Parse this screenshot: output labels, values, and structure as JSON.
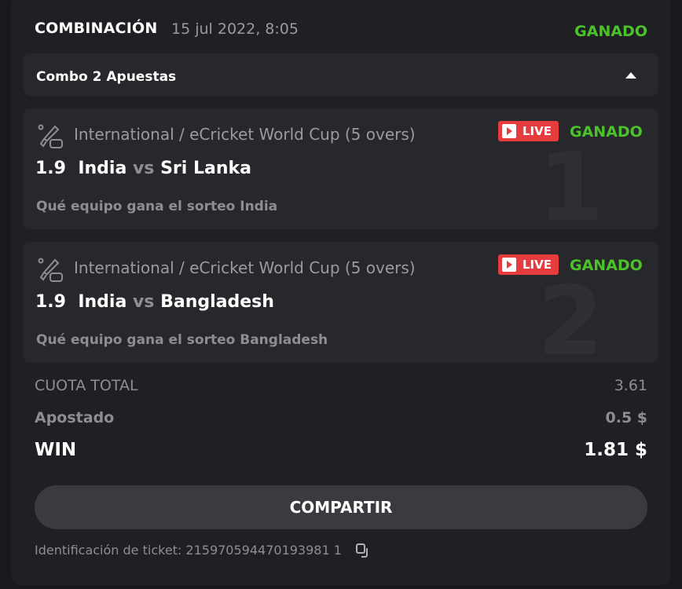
{
  "header": {
    "title": "COMBINACIÓN",
    "date": "15 jul 2022, 8:05",
    "status": "GANADO"
  },
  "combo": {
    "label": "Combo 2 Apuestas"
  },
  "bets": [
    {
      "index": "1",
      "league": "International / eCricket World Cup (5 overs)",
      "live": "LIVE",
      "status": "GANADO",
      "odds": "1.9",
      "home": "India",
      "vs": "vs",
      "away": "Sri Lanka",
      "market": "Qué equipo gana el sorteo India"
    },
    {
      "index": "2",
      "league": "International / eCricket World Cup (5 overs)",
      "live": "LIVE",
      "status": "GANADO",
      "odds": "1.9",
      "home": "India",
      "vs": "vs",
      "away": "Bangladesh",
      "market": "Qué equipo gana el sorteo Bangladesh"
    }
  ],
  "summary": {
    "total_odds_label": "CUOTA TOTAL",
    "total_odds": "3.61",
    "stake_label": "Apostado",
    "stake": "0.5 $",
    "win_label": "WIN",
    "win": "1.81 $"
  },
  "share_button": "COMPARTIR",
  "ticket": {
    "label": "Identificación de ticket: 215970594470193981 1",
    "text": "Identificación de ticket: 215970594470193981 1"
  },
  "colors": {
    "win": "#4cc22a",
    "live": "#e63b3f"
  }
}
